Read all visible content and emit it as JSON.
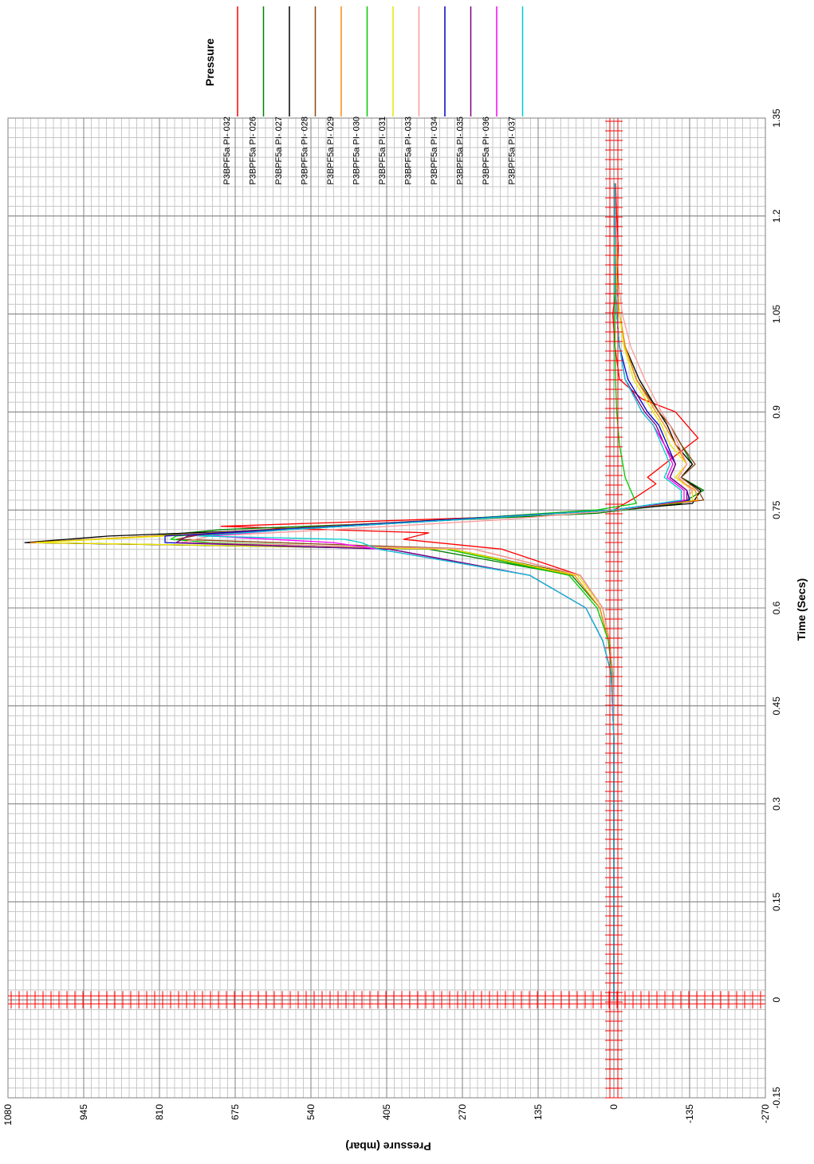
{
  "chart_data": {
    "type": "line",
    "orientation": "rotated-90-clockwise",
    "xlabel": "Time (Secs)",
    "ylabel": "Pressure (mbar)",
    "legend_title": "Pressure",
    "legend_position": "top-right",
    "grid": true,
    "xlim": [
      -0.15,
      1.35
    ],
    "ylim": [
      -270,
      1080
    ],
    "x_ticks": [
      "-0.15",
      "0",
      "0.15",
      "0.3",
      "0.45",
      "0.6",
      "0.75",
      "0.9",
      "1.05",
      "1.2",
      "1.35"
    ],
    "y_ticks": [
      "1080",
      "945",
      "810",
      "675",
      "540",
      "405",
      "270",
      "135",
      "0",
      "-135",
      "-270"
    ],
    "cursors": {
      "time": 0,
      "pressure": 0
    },
    "series": [
      {
        "name": "P3BPF5a PI-   032",
        "color": "#ff0000",
        "x": [
          0.0,
          0.4,
          0.5,
          0.55,
          0.6,
          0.65,
          0.69,
          0.705,
          0.715,
          0.725,
          0.74,
          0.75,
          0.77,
          0.79,
          0.8,
          0.82,
          0.84,
          0.86,
          0.88,
          0.9,
          0.92,
          0.95,
          1.0,
          1.05,
          1.1,
          1.15,
          1.2,
          1.25
        ],
        "y": [
          0,
          0,
          3,
          8,
          20,
          60,
          200,
          375,
          330,
          700,
          180,
          0,
          -40,
          -75,
          -60,
          -90,
          -120,
          -150,
          -130,
          -110,
          -50,
          -10,
          -2,
          2,
          -5,
          -8,
          -5,
          -3
        ]
      },
      {
        "name": "P3BPF5a PI-   026",
        "color": "#008000",
        "x": [
          0.0,
          0.4,
          0.5,
          0.55,
          0.6,
          0.65,
          0.69,
          0.7,
          0.71,
          0.72,
          0.73,
          0.745,
          0.76,
          0.78,
          0.8,
          0.82,
          0.85,
          0.88,
          0.9,
          0.95,
          1.0,
          1.05,
          1.1,
          1.2,
          1.25
        ],
        "y": [
          0,
          0,
          3,
          10,
          25,
          75,
          330,
          1040,
          820,
          700,
          400,
          30,
          -120,
          -160,
          -120,
          -140,
          -120,
          -100,
          -80,
          -40,
          -20,
          -10,
          -5,
          -3,
          -2
        ]
      },
      {
        "name": "P3BPF5a PI-   027",
        "color": "#000000",
        "x": [
          0.0,
          0.4,
          0.5,
          0.55,
          0.6,
          0.65,
          0.69,
          0.7,
          0.71,
          0.72,
          0.735,
          0.75,
          0.76,
          0.78,
          0.8,
          0.82,
          0.85,
          0.88,
          0.9,
          0.95,
          1.0,
          1.05,
          1.1,
          1.2,
          1.25
        ],
        "y": [
          0,
          0,
          2,
          8,
          20,
          60,
          290,
          1050,
          900,
          600,
          300,
          0,
          -140,
          -155,
          -120,
          -140,
          -110,
          -95,
          -80,
          -45,
          -20,
          -10,
          -5,
          -3,
          -2
        ]
      },
      {
        "name": "P3BPF5a PI-   028",
        "color": "#8b4513",
        "x": [
          0.0,
          0.4,
          0.5,
          0.55,
          0.6,
          0.65,
          0.69,
          0.705,
          0.715,
          0.725,
          0.74,
          0.75,
          0.765,
          0.78,
          0.8,
          0.82,
          0.85,
          0.88,
          0.9,
          0.95,
          1.0,
          1.05,
          1.1,
          1.2,
          1.25
        ],
        "y": [
          0,
          0,
          2,
          8,
          20,
          60,
          250,
          780,
          720,
          520,
          200,
          0,
          -160,
          -150,
          -120,
          -145,
          -120,
          -100,
          -80,
          -40,
          -20,
          -10,
          -5,
          -3,
          -2
        ]
      },
      {
        "name": "P3BPF5a PI-   029",
        "color": "#ff8c00",
        "x": [
          0.0,
          0.4,
          0.5,
          0.55,
          0.6,
          0.65,
          0.69,
          0.7,
          0.71,
          0.72,
          0.735,
          0.75,
          0.765,
          0.78,
          0.8,
          0.82,
          0.85,
          0.88,
          0.9,
          0.95,
          1.0,
          1.05,
          1.1,
          1.2,
          1.25
        ],
        "y": [
          0,
          0,
          2,
          10,
          25,
          70,
          300,
          1040,
          820,
          600,
          300,
          0,
          -150,
          -145,
          -110,
          -130,
          -110,
          -90,
          -75,
          -40,
          -20,
          -10,
          -5,
          -3,
          -2
        ]
      },
      {
        "name": "P3BPF5a PI-   030",
        "color": "#00cc00",
        "x": [
          0.0,
          0.4,
          0.5,
          0.55,
          0.6,
          0.65,
          0.69,
          0.7,
          0.705,
          0.71,
          0.72,
          0.735,
          0.75,
          0.76,
          0.78,
          0.8,
          0.85,
          0.9,
          0.95,
          1.0,
          1.05,
          1.1,
          1.2,
          1.25
        ],
        "y": [
          0,
          0,
          3,
          10,
          30,
          80,
          300,
          720,
          790,
          780,
          600,
          300,
          30,
          -40,
          -30,
          -20,
          -10,
          -5,
          -3,
          -2,
          -2,
          -2,
          -2,
          -2
        ]
      },
      {
        "name": "P3BPF5a PI-   031",
        "color": "#e6e600",
        "x": [
          0.0,
          0.4,
          0.5,
          0.55,
          0.6,
          0.65,
          0.69,
          0.7,
          0.71,
          0.72,
          0.735,
          0.75,
          0.765,
          0.78,
          0.8,
          0.82,
          0.85,
          0.88,
          0.9,
          0.95,
          1.0,
          1.05,
          1.1,
          1.2,
          1.25
        ],
        "y": [
          0,
          0,
          2,
          8,
          20,
          65,
          290,
          1030,
          800,
          580,
          280,
          0,
          -140,
          -140,
          -110,
          -130,
          -100,
          -85,
          -70,
          -35,
          -18,
          -10,
          -5,
          -3,
          -2
        ]
      },
      {
        "name": "P3BPF5a PI-   033",
        "color": "#ff9999",
        "x": [
          0.0,
          0.4,
          0.5,
          0.55,
          0.6,
          0.65,
          0.69,
          0.7,
          0.71,
          0.72,
          0.735,
          0.75,
          0.765,
          0.78,
          0.8,
          0.82,
          0.85,
          0.88,
          0.9,
          0.95,
          1.0,
          1.05,
          1.1,
          1.2,
          1.25
        ],
        "y": [
          0,
          0,
          2,
          8,
          20,
          60,
          250,
          770,
          720,
          500,
          200,
          -10,
          -130,
          -140,
          -115,
          -130,
          -115,
          -100,
          -85,
          -55,
          -30,
          -15,
          -8,
          -3,
          -2
        ]
      },
      {
        "name": "P3BPF5a PI-   034",
        "color": "#0000cc",
        "x": [
          0.0,
          0.4,
          0.5,
          0.55,
          0.6,
          0.65,
          0.69,
          0.7,
          0.71,
          0.72,
          0.735,
          0.75,
          0.765,
          0.78,
          0.8,
          0.82,
          0.85,
          0.88,
          0.9,
          0.95,
          1.0,
          1.05,
          1.1,
          1.2,
          1.25
        ],
        "y": [
          0,
          0,
          5,
          20,
          50,
          150,
          400,
          800,
          800,
          600,
          300,
          0,
          -135,
          -130,
          -100,
          -110,
          -95,
          -80,
          -60,
          -25,
          -10,
          -5,
          -3,
          -2,
          -2
        ]
      },
      {
        "name": "P3BPF5a PI-   035",
        "color": "#800080",
        "x": [
          0.0,
          0.4,
          0.5,
          0.55,
          0.6,
          0.65,
          0.69,
          0.7,
          0.71,
          0.72,
          0.735,
          0.75,
          0.765,
          0.78,
          0.8,
          0.82,
          0.85,
          0.88,
          0.9,
          0.95,
          1.0,
          1.05,
          1.1,
          1.2,
          1.25
        ],
        "y": [
          0,
          0,
          5,
          20,
          50,
          150,
          400,
          780,
          760,
          580,
          280,
          0,
          -130,
          -130,
          -100,
          -110,
          -90,
          -75,
          -55,
          -20,
          -10,
          -5,
          -3,
          -2,
          -2
        ]
      },
      {
        "name": "P3BPF5a PI-   036",
        "color": "#ff00ff",
        "x": [
          0.0,
          0.4,
          0.45,
          0.5,
          0.55,
          0.6,
          0.65,
          0.69,
          0.7,
          0.71,
          0.72,
          0.735,
          0.75,
          0.765,
          0.78,
          0.8,
          0.82,
          0.85,
          0.88,
          0.9,
          0.95,
          1.0,
          1.05,
          1.1,
          1.2,
          1.25
        ],
        "y": [
          0,
          0,
          2,
          5,
          20,
          50,
          150,
          420,
          500,
          720,
          580,
          280,
          0,
          -125,
          -125,
          -95,
          -105,
          -90,
          -70,
          -50,
          -20,
          -10,
          -5,
          -3,
          -2,
          -2
        ]
      },
      {
        "name": "P3BPF5a PI-   037",
        "color": "#00cccc",
        "x": [
          0.0,
          0.4,
          0.5,
          0.55,
          0.6,
          0.65,
          0.69,
          0.7,
          0.705,
          0.71,
          0.72,
          0.735,
          0.75,
          0.765,
          0.78,
          0.8,
          0.82,
          0.85,
          0.88,
          0.9,
          0.95,
          1.0,
          1.05,
          1.1,
          1.2,
          1.25
        ],
        "y": [
          0,
          0,
          5,
          20,
          50,
          150,
          420,
          450,
          480,
          740,
          580,
          280,
          0,
          -120,
          -120,
          -90,
          -100,
          -85,
          -70,
          -50,
          -20,
          -10,
          -5,
          -3,
          -2,
          -2
        ]
      }
    ]
  }
}
